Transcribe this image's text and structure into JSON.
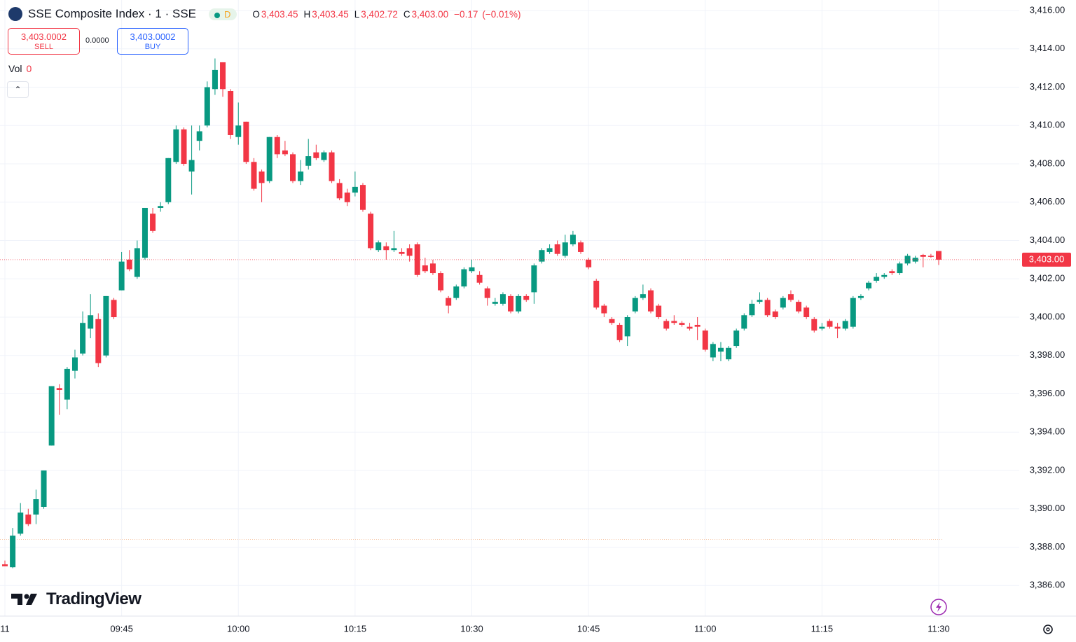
{
  "header": {
    "title": "SSE Composite Index · 1 · SSE",
    "badge": "D",
    "open_key": "O",
    "open": {
      "value": 3403.45,
      "label": "3,403.45"
    },
    "high_key": "H",
    "high": {
      "value": 3403.45,
      "label": "3,403.45"
    },
    "low_key": "L",
    "low": {
      "value": 3402.72,
      "label": "3,402.72"
    },
    "close_key": "C",
    "close": {
      "value": 3403.0,
      "label": "3,403.00"
    },
    "change": {
      "value": -0.17,
      "label": "−0.17"
    },
    "change_pct": {
      "value": -0.01,
      "label": "(−0.01%)"
    }
  },
  "trade": {
    "sell": {
      "value": 3403.0002,
      "label": "3,403.0002"
    },
    "sell_label": "SELL",
    "spread": {
      "value": 0,
      "label": "0.0000"
    },
    "buy": {
      "value": 3403.0002,
      "label": "3,403.0002"
    },
    "buy_label": "BUY"
  },
  "volume": {
    "label": "Vol",
    "value": 0
  },
  "brand": "TradingView",
  "chart_data": {
    "type": "candlestick",
    "x": [
      "09:30",
      "09:31",
      "09:32",
      "09:33",
      "09:34",
      "09:35",
      "09:36",
      "09:37",
      "09:38",
      "09:39",
      "09:40",
      "09:41",
      "09:42",
      "09:43",
      "09:44",
      "09:45",
      "09:46",
      "09:47",
      "09:48",
      "09:49",
      "09:50",
      "09:51",
      "09:52",
      "09:53",
      "09:54",
      "09:55",
      "09:56",
      "09:57",
      "09:58",
      "09:59",
      "10:00",
      "10:01",
      "10:02",
      "10:03",
      "10:04",
      "10:05",
      "10:06",
      "10:07",
      "10:08",
      "10:09",
      "10:10",
      "10:11",
      "10:12",
      "10:13",
      "10:14",
      "10:15",
      "10:16",
      "10:17",
      "10:18",
      "10:19",
      "10:20",
      "10:21",
      "10:22",
      "10:23",
      "10:24",
      "10:25",
      "10:26",
      "10:27",
      "10:28",
      "10:29",
      "10:30",
      "10:31",
      "10:32",
      "10:33",
      "10:34",
      "10:35",
      "10:36",
      "10:37",
      "10:38",
      "10:39",
      "10:40",
      "10:41",
      "10:42",
      "10:43",
      "10:44",
      "10:45",
      "10:46",
      "10:47",
      "10:48",
      "10:49",
      "10:50",
      "10:51",
      "10:52",
      "10:53",
      "10:54",
      "10:55",
      "10:56",
      "10:57",
      "10:58",
      "10:59",
      "11:00",
      "11:01",
      "11:02",
      "11:03",
      "11:04",
      "11:05",
      "11:06",
      "11:07",
      "11:08",
      "11:09",
      "11:10",
      "11:11",
      "11:12",
      "11:13",
      "11:14",
      "11:15",
      "11:16",
      "11:17",
      "11:18",
      "11:19",
      "11:20",
      "11:21",
      "11:22",
      "11:23",
      "11:24",
      "11:25",
      "11:26",
      "11:27",
      "11:28",
      "11:29",
      "11:30"
    ],
    "open": [
      3387.1,
      3386.95,
      3388.7,
      3389.7,
      3389.7,
      3390.1,
      3393.3,
      3396.3,
      3395.7,
      3397.2,
      3398.1,
      3399.4,
      3399.9,
      3398.0,
      3400.9,
      3401.4,
      3403.0,
      3402.1,
      3403.1,
      3405.4,
      3405.7,
      3406.0,
      3408.1,
      3409.8,
      3407.6,
      3409.2,
      3410.0,
      3411.9,
      3413.3,
      3411.8,
      3409.4,
      3410.2,
      3408.1,
      3407.6,
      3407.1,
      3409.4,
      3408.7,
      3408.5,
      3407.1,
      3407.9,
      3408.6,
      3408.2,
      3408.6,
      3407.0,
      3406.5,
      3406.5,
      3406.9,
      3405.4,
      3403.5,
      3403.7,
      3403.5,
      3403.4,
      3403.6,
      3403.8,
      3402.7,
      3402.8,
      3402.3,
      3401.0,
      3401.0,
      3401.6,
      3402.4,
      3402.2,
      3401.5,
      3400.7,
      3400.7,
      3401.1,
      3400.3,
      3401.1,
      3401.3,
      3402.9,
      3403.4,
      3403.8,
      3403.2,
      3403.8,
      3403.9,
      3403.0,
      3401.9,
      3400.6,
      3399.9,
      3399.6,
      3399.0,
      3400.3,
      3401.0,
      3401.4,
      3400.6,
      3399.8,
      3399.8,
      3399.7,
      3399.5,
      3399.6,
      3399.3,
      3397.9,
      3398.2,
      3397.8,
      3398.5,
      3399.4,
      3400.1,
      3400.8,
      3400.9,
      3400.3,
      3400.5,
      3401.2,
      3400.8,
      3400.5,
      3399.9,
      3399.4,
      3399.8,
      3399.5,
      3399.4,
      3399.5,
      3401.0,
      3401.5,
      3401.9,
      3402.1,
      3402.4,
      3402.3,
      3402.8,
      3402.9,
      3403.25,
      3403.2,
      3403.45
    ],
    "high": [
      3387.3,
      3389.0,
      3390.3,
      3390.0,
      3391.0,
      3392.0,
      3396.4,
      3396.5,
      3397.4,
      3398.3,
      3400.3,
      3401.2,
      3400.2,
      3401.1,
      3401.0,
      3403.4,
      3403.5,
      3404.0,
      3405.7,
      3405.7,
      3406.0,
      3408.3,
      3410.0,
      3409.9,
      3410.0,
      3410.0,
      3412.3,
      3413.5,
      3413.3,
      3411.9,
      3411.2,
      3410.2,
      3408.3,
      3407.7,
      3409.4,
      3409.5,
      3409.2,
      3408.6,
      3408.2,
      3409.3,
      3409.0,
      3408.7,
      3408.7,
      3407.2,
      3406.7,
      3407.6,
      3407.0,
      3405.5,
      3404.0,
      3403.9,
      3404.5,
      3403.6,
      3403.8,
      3403.9,
      3403.1,
      3403.0,
      3402.4,
      3401.1,
      3401.7,
      3402.6,
      3403.0,
      3402.4,
      3401.6,
      3401.0,
      3401.3,
      3401.2,
      3401.2,
      3401.2,
      3402.8,
      3403.6,
      3403.8,
      3404.0,
      3404.3,
      3404.5,
      3404.0,
      3403.1,
      3402.0,
      3400.7,
      3400.0,
      3399.7,
      3400.1,
      3401.1,
      3401.7,
      3401.5,
      3400.7,
      3399.9,
      3400.1,
      3399.8,
      3399.7,
      3400.0,
      3399.4,
      3398.7,
      3398.7,
      3398.5,
      3399.4,
      3400.2,
      3400.9,
      3401.3,
      3401.0,
      3400.4,
      3401.1,
      3401.4,
      3400.9,
      3400.6,
      3400.0,
      3399.7,
      3399.9,
      3399.7,
      3399.9,
      3401.1,
      3401.2,
      3401.9,
      3402.3,
      3402.3,
      3402.5,
      3402.9,
      3403.3,
      3403.2,
      3403.3,
      3403.3,
      3403.45
    ],
    "low": [
      3387.0,
      3386.9,
      3388.6,
      3389.1,
      3389.2,
      3390.0,
      3393.3,
      3394.9,
      3395.2,
      3396.8,
      3398.0,
      3398.9,
      3397.4,
      3397.9,
      3399.9,
      3401.4,
      3402.4,
      3402.0,
      3403.0,
      3404.4,
      3405.5,
      3405.9,
      3408.0,
      3407.9,
      3406.4,
      3408.7,
      3409.9,
      3411.6,
      3411.5,
      3409.3,
      3409.0,
      3408.0,
      3406.6,
      3406.0,
      3407.0,
      3408.3,
      3408.4,
      3407.0,
      3406.9,
      3407.7,
      3408.2,
      3408.1,
      3407.0,
      3406.1,
      3405.8,
      3406.3,
      3405.5,
      3403.5,
      3403.4,
      3403.0,
      3403.4,
      3403.2,
      3402.9,
      3402.1,
      3402.3,
      3402.2,
      3401.3,
      3400.2,
      3400.9,
      3401.5,
      3402.3,
      3401.7,
      3400.6,
      3400.6,
      3400.6,
      3400.2,
      3400.2,
      3400.8,
      3400.7,
      3402.8,
      3403.3,
      3403.2,
      3403.1,
      3403.7,
      3403.3,
      3402.5,
      3400.4,
      3400.0,
      3399.6,
      3398.7,
      3398.5,
      3400.2,
      3400.9,
      3400.2,
      3399.9,
      3399.3,
      3399.6,
      3399.5,
      3399.3,
      3398.8,
      3398.2,
      3397.7,
      3397.7,
      3397.7,
      3398.4,
      3399.3,
      3400.0,
      3400.7,
      3400.0,
      3399.9,
      3400.4,
      3400.8,
      3400.2,
      3399.9,
      3399.2,
      3399.3,
      3399.4,
      3398.9,
      3399.3,
      3399.4,
      3400.9,
      3401.4,
      3401.8,
      3402.0,
      3402.2,
      3402.2,
      3402.7,
      3402.8,
      3402.6,
      3403.1,
      3402.72
    ],
    "close": [
      3387.0,
      3388.6,
      3389.8,
      3389.2,
      3390.5,
      3392.0,
      3396.4,
      3396.2,
      3397.3,
      3397.9,
      3399.7,
      3400.1,
      3397.6,
      3401.1,
      3400.0,
      3402.9,
      3402.5,
      3403.6,
      3405.7,
      3404.5,
      3405.8,
      3408.3,
      3409.8,
      3408.0,
      3408.2,
      3409.7,
      3412.0,
      3412.9,
      3411.9,
      3409.5,
      3410.0,
      3408.1,
      3406.7,
      3407.0,
      3409.4,
      3408.5,
      3408.5,
      3407.1,
      3407.6,
      3408.4,
      3408.3,
      3408.6,
      3407.1,
      3406.2,
      3406.0,
      3406.8,
      3405.6,
      3403.6,
      3403.9,
      3403.5,
      3403.6,
      3403.3,
      3403.2,
      3402.2,
      3402.4,
      3402.3,
      3401.4,
      3400.6,
      3401.6,
      3402.5,
      3402.6,
      3401.8,
      3401.0,
      3400.8,
      3401.2,
      3400.3,
      3401.1,
      3400.9,
      3402.7,
      3403.5,
      3403.6,
      3403.3,
      3403.9,
      3404.3,
      3403.4,
      3402.6,
      3400.5,
      3400.2,
      3399.7,
      3398.8,
      3400.0,
      3401.0,
      3401.2,
      3400.3,
      3400.0,
      3399.4,
      3399.7,
      3399.6,
      3399.4,
      3399.5,
      3398.3,
      3398.6,
      3398.4,
      3398.4,
      3399.3,
      3400.1,
      3400.7,
      3400.9,
      3400.1,
      3400.0,
      3401.0,
      3400.9,
      3400.3,
      3400.0,
      3399.3,
      3399.5,
      3399.5,
      3399.4,
      3399.8,
      3401.0,
      3401.1,
      3401.8,
      3402.1,
      3402.2,
      3402.3,
      3402.8,
      3403.2,
      3403.1,
      3403.15,
      3403.15,
      3403.0
    ],
    "up_color": "#089981",
    "down_color": "#f23645",
    "ylim": [
      3384.4,
      3416.55
    ],
    "yticks": [
      {
        "value": 3386,
        "label": "3,386.00"
      },
      {
        "value": 3388,
        "label": "3,388.00"
      },
      {
        "value": 3390,
        "label": "3,390.00"
      },
      {
        "value": 3392,
        "label": "3,392.00"
      },
      {
        "value": 3394,
        "label": "3,394.00"
      },
      {
        "value": 3396,
        "label": "3,396.00"
      },
      {
        "value": 3398,
        "label": "3,398.00"
      },
      {
        "value": 3400,
        "label": "3,400.00"
      },
      {
        "value": 3402,
        "label": "3,402.00"
      },
      {
        "value": 3404,
        "label": "3,404.00"
      },
      {
        "value": 3406,
        "label": "3,406.00"
      },
      {
        "value": 3408,
        "label": "3,408.00"
      },
      {
        "value": 3410,
        "label": "3,410.00"
      },
      {
        "value": 3412,
        "label": "3,412.00"
      },
      {
        "value": 3414,
        "label": "3,414.00"
      },
      {
        "value": 3416,
        "label": "3,416.00"
      }
    ],
    "xticks": [
      {
        "value": "09:30",
        "label": "11"
      },
      "09:45",
      "10:00",
      "10:15",
      "10:30",
      "10:45",
      "11:00",
      "11:15",
      "11:30"
    ],
    "grid": true,
    "last_price": {
      "value": 3403.0,
      "label": "3,403.00"
    },
    "reference_line": 3388.4
  }
}
